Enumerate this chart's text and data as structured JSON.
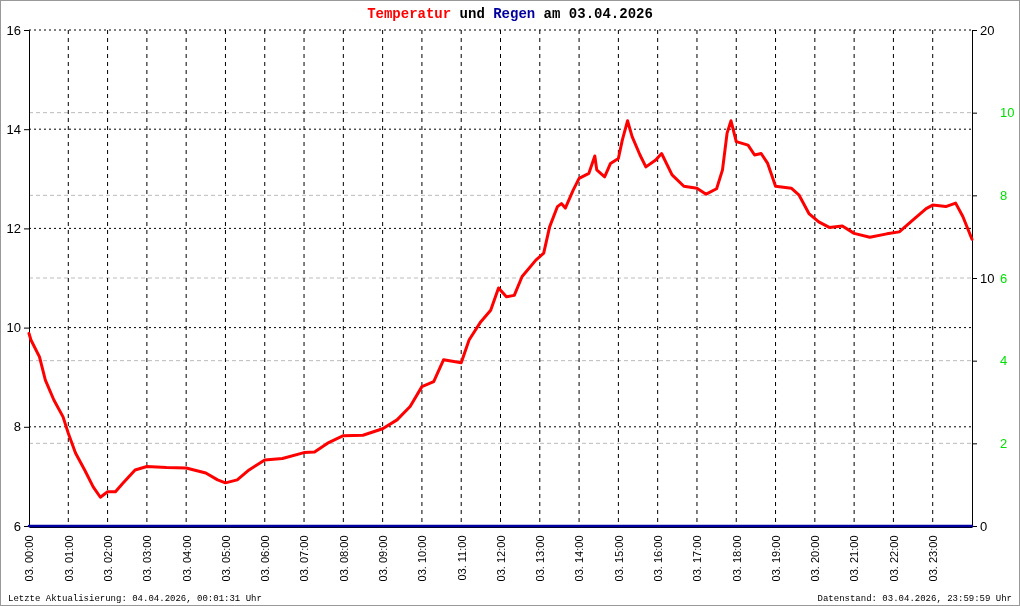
{
  "chart_data": {
    "type": "line",
    "title": "Temperatur und Regen am 03.04.2026",
    "annotations": [
      "Letzte Aktualisierung: 04.04.2026, 00:01:31 Uhr",
      "Datenstand: 03.04.2026, 23:59:59 Uhr"
    ],
    "xlim": [
      "2026-04-03T00:00",
      "2026-04-04T00:00"
    ],
    "xticks": [
      {
        "value": "2026-04-03T00:00",
        "label": "03. 00:00"
      },
      {
        "value": "2026-04-03T01:00",
        "label": "03. 01:00"
      },
      {
        "value": "2026-04-03T02:00",
        "label": "03. 02:00"
      },
      {
        "value": "2026-04-03T03:00",
        "label": "03. 03:00"
      },
      {
        "value": "2026-04-03T04:00",
        "label": "03. 04:00"
      },
      {
        "value": "2026-04-03T05:00",
        "label": "03. 05:00"
      },
      {
        "value": "2026-04-03T06:00",
        "label": "03. 06:00"
      },
      {
        "value": "2026-04-03T07:00",
        "label": "03. 07:00"
      },
      {
        "value": "2026-04-03T08:00",
        "label": "03. 08:00"
      },
      {
        "value": "2026-04-03T09:00",
        "label": "03. 09:00"
      },
      {
        "value": "2026-04-03T10:00",
        "label": "03. 10:00"
      },
      {
        "value": "2026-04-03T11:00",
        "label": "03. 11:00"
      },
      {
        "value": "2026-04-03T12:00",
        "label": "03. 12:00"
      },
      {
        "value": "2026-04-03T13:00",
        "label": "03. 13:00"
      },
      {
        "value": "2026-04-03T14:00",
        "label": "03. 14:00"
      },
      {
        "value": "2026-04-03T15:00",
        "label": "03. 15:00"
      },
      {
        "value": "2026-04-03T16:00",
        "label": "03. 16:00"
      },
      {
        "value": "2026-04-03T17:00",
        "label": "03. 17:00"
      },
      {
        "value": "2026-04-03T18:00",
        "label": "03. 18:00"
      },
      {
        "value": "2026-04-03T19:00",
        "label": "03. 19:00"
      },
      {
        "value": "2026-04-03T20:00",
        "label": "03. 20:00"
      },
      {
        "value": "2026-04-03T21:00",
        "label": "03. 21:00"
      },
      {
        "value": "2026-04-03T22:00",
        "label": "03. 22:00"
      },
      {
        "value": "2026-04-03T23:00",
        "label": "03. 23:00"
      }
    ],
    "ylim": [
      6,
      16
    ],
    "yticks": [
      6,
      8,
      10,
      12,
      14,
      16
    ],
    "y2lim": [
      0,
      20
    ],
    "y2ticks": [
      0,
      10,
      20
    ],
    "y3lim": [
      0,
      12
    ],
    "y3ticks": [
      2,
      4,
      6,
      8,
      10
    ],
    "grid": true,
    "series": [
      {
        "color": "#ff0000",
        "x": [
          "2026-04-03T00:00",
          "2026-04-03T00:03",
          "2026-04-03T00:16",
          "2026-04-03T00:25",
          "2026-04-03T00:38",
          "2026-04-03T00:52",
          "2026-04-03T01:00",
          "2026-04-03T01:11",
          "2026-04-03T01:25",
          "2026-04-03T01:38",
          "2026-04-03T01:49",
          "2026-04-03T02:00",
          "2026-04-03T02:12",
          "2026-04-03T02:24",
          "2026-04-03T02:42",
          "2026-04-03T03:00",
          "2026-04-03T03:30",
          "2026-04-03T04:00",
          "2026-04-03T04:30",
          "2026-04-03T04:48",
          "2026-04-03T05:00",
          "2026-04-03T05:18",
          "2026-04-03T05:36",
          "2026-04-03T06:00",
          "2026-04-03T06:27",
          "2026-04-03T07:00",
          "2026-04-03T07:16",
          "2026-04-03T07:36",
          "2026-04-03T08:00",
          "2026-04-03T08:30",
          "2026-04-03T09:00",
          "2026-04-03T09:22",
          "2026-04-03T09:42",
          "2026-04-03T10:00",
          "2026-04-03T10:18",
          "2026-04-03T10:33",
          "2026-04-03T11:00",
          "2026-04-03T11:12",
          "2026-04-03T11:30",
          "2026-04-03T11:45",
          "2026-04-03T11:57",
          "2026-04-03T12:09",
          "2026-04-03T12:21",
          "2026-04-03T12:33",
          "2026-04-03T12:54",
          "2026-04-03T13:06",
          "2026-04-03T13:15",
          "2026-04-03T13:27",
          "2026-04-03T13:33",
          "2026-04-03T13:39",
          "2026-04-03T13:51",
          "2026-04-03T14:00",
          "2026-04-03T14:15",
          "2026-04-03T14:24",
          "2026-04-03T14:27",
          "2026-04-03T14:39",
          "2026-04-03T14:48",
          "2026-04-03T15:00",
          "2026-04-03T15:06",
          "2026-04-03T15:14",
          "2026-04-03T15:21",
          "2026-04-03T15:33",
          "2026-04-03T15:42",
          "2026-04-03T15:57",
          "2026-04-03T16:06",
          "2026-04-03T16:22",
          "2026-04-03T16:40",
          "2026-04-03T17:00",
          "2026-04-03T17:14",
          "2026-04-03T17:30",
          "2026-04-03T17:39",
          "2026-04-03T17:46",
          "2026-04-03T17:52",
          "2026-04-03T18:00",
          "2026-04-03T18:18",
          "2026-04-03T18:28",
          "2026-04-03T18:38",
          "2026-04-03T18:48",
          "2026-04-03T19:00",
          "2026-04-03T19:24",
          "2026-04-03T19:36",
          "2026-04-03T19:51",
          "2026-04-03T20:06",
          "2026-04-03T20:22",
          "2026-04-03T20:42",
          "2026-04-03T21:00",
          "2026-04-03T21:24",
          "2026-04-03T21:50",
          "2026-04-03T22:09",
          "2026-04-03T22:30",
          "2026-04-03T22:50",
          "2026-04-03T23:00",
          "2026-04-03T23:20",
          "2026-04-03T23:35",
          "2026-04-03T23:46",
          "2026-04-04T00:00"
        ],
        "values": [
          9.88,
          9.75,
          9.41,
          8.94,
          8.54,
          8.2,
          7.87,
          7.47,
          7.13,
          6.79,
          6.58,
          6.69,
          6.69,
          6.87,
          7.13,
          7.2,
          7.18,
          7.17,
          7.07,
          6.93,
          6.87,
          6.93,
          7.13,
          7.33,
          7.36,
          7.48,
          7.49,
          7.67,
          7.82,
          7.83,
          7.96,
          8.14,
          8.41,
          8.81,
          8.91,
          9.35,
          9.29,
          9.75,
          10.12,
          10.35,
          10.8,
          10.62,
          10.65,
          11.03,
          11.36,
          11.5,
          12.03,
          12.44,
          12.5,
          12.41,
          12.77,
          13.01,
          13.11,
          13.46,
          13.18,
          13.04,
          13.31,
          13.41,
          13.78,
          14.17,
          13.85,
          13.48,
          13.24,
          13.38,
          13.51,
          13.08,
          12.85,
          12.81,
          12.69,
          12.8,
          13.18,
          13.92,
          14.17,
          13.75,
          13.68,
          13.48,
          13.51,
          13.31,
          12.85,
          12.81,
          12.67,
          12.3,
          12.13,
          12.02,
          12.05,
          11.9,
          11.82,
          11.89,
          11.93,
          12.17,
          12.4,
          12.47,
          12.44,
          12.51,
          12.24,
          11.78
        ]
      },
      {
        "color": "#0000a0",
        "axis": "y2",
        "x": [
          "2026-04-03T00:00",
          "2026-04-04T00:00"
        ],
        "values": [
          0,
          0
        ]
      }
    ]
  }
}
